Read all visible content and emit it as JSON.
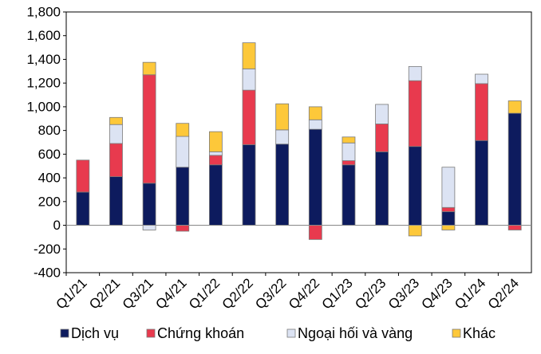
{
  "chart_data": {
    "type": "bar",
    "stacked": true,
    "categories": [
      "Q1/21",
      "Q2/21",
      "Q3/21",
      "Q4/21",
      "Q1/22",
      "Q2/22",
      "Q3/22",
      "Q4/22",
      "Q1/23",
      "Q2/23",
      "Q3/23",
      "Q4/23",
      "Q1/24",
      "Q2/24"
    ],
    "series": [
      {
        "name": "Dịch vụ",
        "color": "#0d1b5e",
        "values": [
          280,
          410,
          355,
          490,
          510,
          680,
          685,
          810,
          510,
          620,
          665,
          115,
          715,
          945
        ]
      },
      {
        "name": "Chứng khoán",
        "color": "#e83a4e",
        "values": [
          270,
          280,
          915,
          -50,
          80,
          460,
          0,
          -120,
          35,
          235,
          555,
          35,
          480,
          -40
        ]
      },
      {
        "name": "Ngoại hối và vàng",
        "color": "#dce3f3",
        "values": [
          0,
          160,
          -40,
          260,
          30,
          180,
          120,
          80,
          150,
          165,
          120,
          340,
          80,
          0
        ]
      },
      {
        "name": "Khác",
        "color": "#fdc83a",
        "values": [
          0,
          60,
          105,
          110,
          170,
          220,
          220,
          110,
          50,
          0,
          -90,
          -40,
          0,
          105
        ]
      }
    ],
    "ylim": [
      -400,
      1800
    ],
    "yticks": [
      1800,
      1600,
      1400,
      1200,
      1000,
      800,
      600,
      400,
      200,
      0,
      -200,
      -400
    ],
    "ytick_labels": [
      "1,800",
      "1,600",
      "1,400",
      "1,200",
      "1,000",
      "800",
      "600",
      "400",
      "200",
      "0",
      "-200",
      "-400"
    ],
    "legend_position": "bottom",
    "grid": false
  }
}
